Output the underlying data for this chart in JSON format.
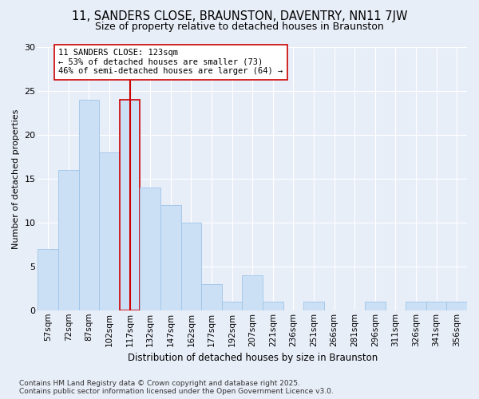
{
  "title": "11, SANDERS CLOSE, BRAUNSTON, DAVENTRY, NN11 7JW",
  "subtitle": "Size of property relative to detached houses in Braunston",
  "xlabel": "Distribution of detached houses by size in Braunston",
  "ylabel": "Number of detached properties",
  "categories": [
    "57sqm",
    "72sqm",
    "87sqm",
    "102sqm",
    "117sqm",
    "132sqm",
    "147sqm",
    "162sqm",
    "177sqm",
    "192sqm",
    "207sqm",
    "221sqm",
    "236sqm",
    "251sqm",
    "266sqm",
    "281sqm",
    "296sqm",
    "311sqm",
    "326sqm",
    "341sqm",
    "356sqm"
  ],
  "values": [
    7,
    16,
    24,
    18,
    24,
    14,
    12,
    10,
    3,
    1,
    4,
    1,
    0,
    1,
    0,
    0,
    1,
    0,
    1,
    1,
    1
  ],
  "bar_color": "#cce0f5",
  "bar_edge_color": "#9ec4e8",
  "highlight_color": "#cc0000",
  "highlight_index": 4,
  "annotation_line1": "11 SANDERS CLOSE: 123sqm",
  "annotation_line2": "← 53% of detached houses are smaller (73)",
  "annotation_line3": "46% of semi-detached houses are larger (64) →",
  "ylim": [
    0,
    30
  ],
  "yticks": [
    0,
    5,
    10,
    15,
    20,
    25,
    30
  ],
  "background_color": "#e8eef8",
  "plot_bg_color": "#e8eef8",
  "grid_color": "#ffffff",
  "footnote1": "Contains HM Land Registry data © Crown copyright and database right 2025.",
  "footnote2": "Contains public sector information licensed under the Open Government Licence v3.0."
}
